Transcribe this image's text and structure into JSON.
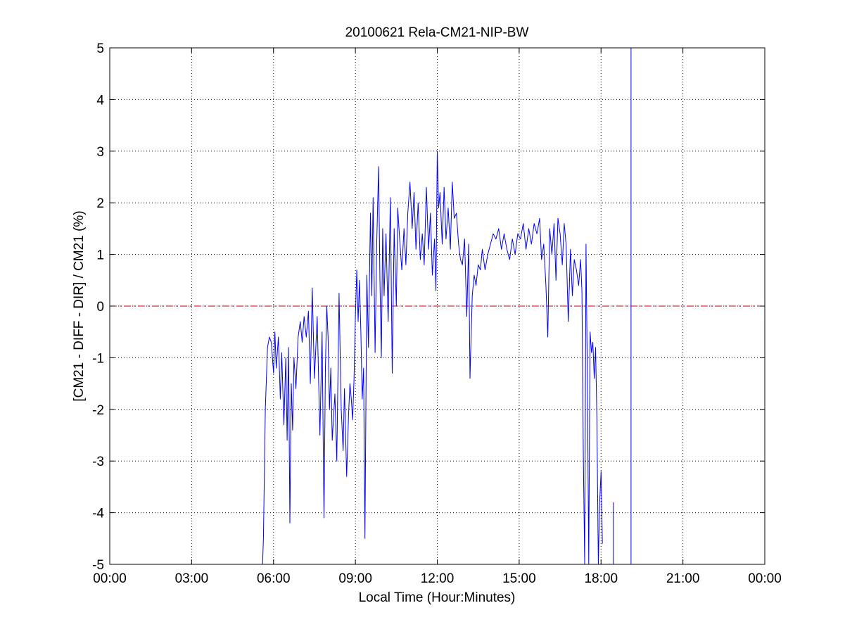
{
  "figure_bg": "#ffffff",
  "chart_data": {
    "type": "line",
    "title": "20100621 Rela-CM21-NIP-BW",
    "xlabel": "Local Time (Hour:Minutes)",
    "ylabel": "[CM21 - DIFF - DIR] / CM21 (%)",
    "xlim": [
      0,
      24
    ],
    "ylim": [
      -5,
      5
    ],
    "x_unit": "hours (local time)",
    "x_ticks": [
      0,
      3,
      6,
      9,
      12,
      15,
      18,
      21,
      24
    ],
    "x_tick_labels": [
      "00:00",
      "03:00",
      "06:00",
      "09:00",
      "12:00",
      "15:00",
      "18:00",
      "21:00",
      "00:00"
    ],
    "y_ticks": [
      -5,
      -4,
      -3,
      -2,
      -1,
      0,
      1,
      2,
      3,
      4,
      5
    ],
    "y_tick_labels": [
      "-5",
      "-4",
      "-3",
      "-2",
      "-1",
      "0",
      "1",
      "2",
      "3",
      "4",
      "5"
    ],
    "grid": true,
    "grid_style": "dotted",
    "legend": "none",
    "reference_line": {
      "y": 0,
      "color": "#cc0000",
      "style": "dash-dot"
    },
    "series": [
      {
        "color": "#0000ff",
        "x": [
          5.6,
          5.63,
          5.7,
          5.78,
          5.85,
          5.92,
          6.0,
          6.05,
          6.1,
          6.18,
          6.25,
          6.3,
          6.38,
          6.45,
          6.5,
          6.55,
          6.6,
          6.65,
          6.7,
          6.75,
          6.82,
          6.9,
          6.98,
          7.05,
          7.12,
          7.2,
          7.28,
          7.35,
          7.42,
          7.5,
          7.55,
          7.6,
          7.7,
          7.78,
          7.85,
          7.9,
          7.95,
          8.0,
          8.05,
          8.1,
          8.15,
          8.25,
          8.32,
          8.4,
          8.48,
          8.55,
          8.6,
          8.68,
          8.75,
          8.8,
          8.85,
          8.9,
          8.95,
          9.0,
          9.05,
          9.1,
          9.15,
          9.2,
          9.25,
          9.3,
          9.35,
          9.42,
          9.48,
          9.55,
          9.6,
          9.65,
          9.72,
          9.78,
          9.85,
          9.9,
          9.95,
          10.0,
          10.05,
          10.12,
          10.2,
          10.28,
          10.35,
          10.42,
          10.5,
          10.55,
          10.62,
          10.7,
          10.78,
          10.85,
          10.92,
          11.0,
          11.08,
          11.15,
          11.22,
          11.3,
          11.38,
          11.45,
          11.52,
          11.6,
          11.68,
          11.75,
          11.82,
          11.9,
          11.95,
          12.0,
          12.05,
          12.1,
          12.18,
          12.25,
          12.32,
          12.4,
          12.48,
          12.55,
          12.62,
          12.7,
          12.78,
          12.85,
          12.92,
          13.0,
          13.08,
          13.15,
          13.2,
          13.28,
          13.35,
          13.42,
          13.5,
          13.58,
          13.65,
          13.75,
          13.85,
          13.95,
          14.05,
          14.15,
          14.25,
          14.35,
          14.45,
          14.55,
          14.65,
          14.75,
          14.85,
          14.95,
          15.05,
          15.15,
          15.25,
          15.35,
          15.45,
          15.55,
          15.65,
          15.75,
          15.82,
          15.9,
          15.98,
          16.05,
          16.12,
          16.2,
          16.28,
          16.35,
          16.42,
          16.5,
          16.58,
          16.65,
          16.72,
          16.8,
          16.88,
          16.95,
          17.02,
          17.1,
          17.18,
          17.25,
          17.3,
          17.35,
          17.4,
          17.45,
          17.5,
          17.55,
          17.6,
          17.65,
          17.7,
          17.75,
          17.8,
          17.85,
          17.9,
          17.95,
          18.0,
          18.05
        ],
        "y": [
          -5,
          -4.5,
          -2.0,
          -0.8,
          -0.6,
          -0.7,
          -1.3,
          -0.5,
          -1.2,
          -0.6,
          -1.8,
          -0.9,
          -2.3,
          -1.0,
          -2.6,
          -0.8,
          -4.2,
          -1.5,
          -2.4,
          -1.0,
          -1.6,
          -0.6,
          -0.3,
          -0.7,
          -0.2,
          -0.6,
          -0.1,
          -1.5,
          0.35,
          -1.4,
          -0.8,
          -0.2,
          -2.5,
          -0.5,
          -4.1,
          -1.2,
          0.0,
          -0.6,
          -2.0,
          -1.2,
          -2.6,
          -1.7,
          -3.0,
          0.25,
          -2.0,
          -2.8,
          -1.6,
          -3.3,
          -2.1,
          -1.5,
          -1.8,
          -2.2,
          -1.4,
          -0.2,
          0.7,
          -0.3,
          0.5,
          -0.5,
          -1.8,
          -1.2,
          -4.5,
          0.6,
          -0.8,
          1.8,
          0.2,
          2.1,
          -0.9,
          1.2,
          2.7,
          0.5,
          -1.0,
          1.5,
          0.2,
          1.4,
          -0.3,
          2.1,
          -1.3,
          1.5,
          0.0,
          1.9,
          1.3,
          0.7,
          1.5,
          0.8,
          1.8,
          2.4,
          1.5,
          2.2,
          1.1,
          2.0,
          0.9,
          1.4,
          0.8,
          2.3,
          1.1,
          1.8,
          0.6,
          1.3,
          0.3,
          3.0,
          1.9,
          2.2,
          1.2,
          2.3,
          1.3,
          1.9,
          1.1,
          2.4,
          1.7,
          1.8,
          1.2,
          0.9,
          0.8,
          1.3,
          -0.2,
          1.2,
          -1.4,
          0.2,
          0.6,
          0.4,
          0.8,
          0.7,
          1.1,
          0.7,
          1.0,
          1.2,
          1.4,
          1.3,
          1.5,
          1.1,
          1.4,
          1.1,
          0.9,
          1.3,
          1.0,
          1.4,
          1.3,
          1.6,
          1.1,
          1.5,
          1.2,
          1.6,
          1.4,
          1.7,
          0.9,
          1.2,
          0.4,
          -0.6,
          1.5,
          1.0,
          1.6,
          0.5,
          1.7,
          1.4,
          0.8,
          1.6,
          1.2,
          -0.3,
          1.1,
          0.2,
          0.9,
          0.7,
          0.4,
          0.9,
          0.3,
          -2.8,
          -5.0,
          1.2,
          -1.5,
          -5.0,
          -0.5,
          -0.9,
          -0.7,
          -1.4,
          -0.8,
          -2.2,
          -5.0,
          -3.8,
          -3.2,
          -4.6
        ]
      },
      {
        "color": "#0000ff",
        "x": [
          18.45,
          18.45
        ],
        "y": [
          -3.8,
          -5.0
        ]
      },
      {
        "color": "#0000ff",
        "x": [
          19.1,
          19.1
        ],
        "y": [
          -5,
          5
        ]
      }
    ]
  }
}
